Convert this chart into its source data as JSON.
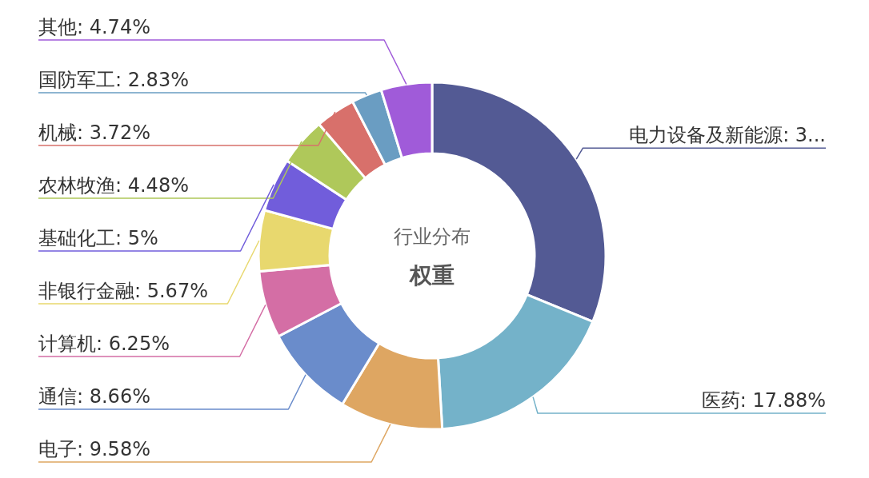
{
  "chart_data": {
    "type": "donut",
    "title": "行业分布",
    "subtitle": "权重",
    "categories": [
      "电力设备及新能源",
      "医药",
      "电子",
      "通信",
      "计算机",
      "非银行金融",
      "基础化工",
      "农林牧渔",
      "机械",
      "国防军工",
      "其他"
    ],
    "values": [
      31.19,
      17.88,
      9.58,
      8.66,
      6.25,
      5.67,
      5,
      4.48,
      3.72,
      2.83,
      4.74
    ],
    "value_labels": [
      "3...",
      "17.88%",
      "9.58%",
      "8.66%",
      "6.25%",
      "5.67%",
      "5%",
      "4.48%",
      "3.72%",
      "2.83%",
      "4.74%"
    ],
    "colors": [
      "#535a94",
      "#74b2c9",
      "#dea662",
      "#6a8ccb",
      "#d46ea5",
      "#e8d86e",
      "#715ddb",
      "#afc85a",
      "#d8706b",
      "#6a9dc2",
      "#a05bd9"
    ]
  }
}
